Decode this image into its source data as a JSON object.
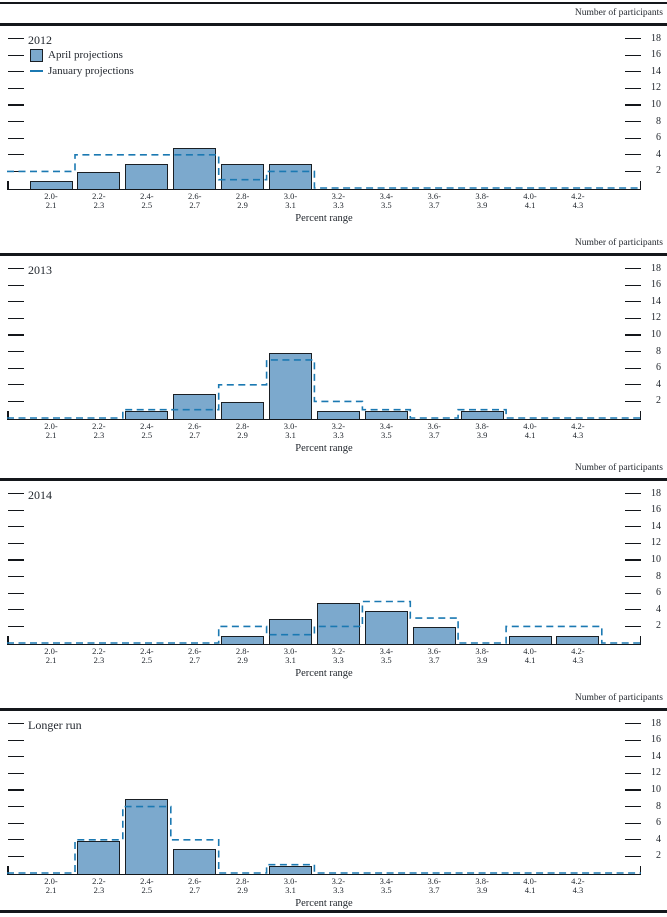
{
  "figure": {
    "y_axis_title": "Number of participants",
    "x_axis_title": "Percent range",
    "legend": {
      "april_label": "April projections",
      "january_label": "January projections"
    },
    "colors": {
      "bar_fill": "#7CA9CD",
      "bar_border": "#1A1F24",
      "january_dashed_line": "#1B79B2",
      "text": "#1F242B",
      "rule": "#14171B"
    }
  },
  "chart_data": [
    {
      "type": "bar",
      "title": "2012",
      "categories": [
        "2.0-2.1",
        "2.2-2.3",
        "2.4-2.5",
        "2.6-2.7",
        "2.8-2.9",
        "3.0-3.1",
        "3.2-3.3",
        "3.4-3.5",
        "3.6-3.7",
        "3.8-3.9",
        "4.0-4.1",
        "4.2-4.3"
      ],
      "series": [
        {
          "name": "April projections",
          "style": "solid-bar",
          "values": [
            1,
            2,
            3,
            5,
            3,
            3,
            0,
            0,
            0,
            0,
            0,
            0
          ]
        },
        {
          "name": "January projections",
          "style": "dashed-step-outline",
          "values": [
            2,
            4,
            4,
            4,
            1,
            2,
            0,
            0,
            0,
            0,
            0,
            0
          ]
        }
      ],
      "xlabel": "Percent range",
      "ylabel": "Number of participants",
      "yticks": [
        2,
        4,
        6,
        8,
        10,
        12,
        14,
        16,
        18
      ],
      "ylim": [
        0,
        19.5
      ],
      "grid": false,
      "legend_position": "top-left",
      "show_legend": true
    },
    {
      "type": "bar",
      "title": "2013",
      "categories": [
        "2.0-2.1",
        "2.2-2.3",
        "2.4-2.5",
        "2.6-2.7",
        "2.8-2.9",
        "3.0-3.1",
        "3.2-3.3",
        "3.4-3.5",
        "3.6-3.7",
        "3.8-3.9",
        "4.0-4.1",
        "4.2-4.3"
      ],
      "series": [
        {
          "name": "April projections",
          "style": "solid-bar",
          "values": [
            0,
            0,
            1,
            3,
            2,
            8,
            1,
            1,
            0,
            1,
            0,
            0
          ]
        },
        {
          "name": "January projections",
          "style": "dashed-step-outline",
          "values": [
            0,
            0,
            1,
            1,
            4,
            7,
            2,
            1,
            0,
            1,
            0,
            0
          ]
        }
      ],
      "xlabel": "Percent range",
      "ylabel": "Number of participants",
      "yticks": [
        2,
        4,
        6,
        8,
        10,
        12,
        14,
        16,
        18
      ],
      "ylim": [
        0,
        19.5
      ],
      "grid": false,
      "show_legend": false
    },
    {
      "type": "bar",
      "title": "2014",
      "categories": [
        "2.0-2.1",
        "2.2-2.3",
        "2.4-2.5",
        "2.6-2.7",
        "2.8-2.9",
        "3.0-3.1",
        "3.2-3.3",
        "3.4-3.5",
        "3.6-3.7",
        "3.8-3.9",
        "4.0-4.1",
        "4.2-4.3"
      ],
      "series": [
        {
          "name": "April projections",
          "style": "solid-bar",
          "values": [
            0,
            0,
            0,
            0,
            1,
            3,
            5,
            4,
            2,
            0,
            1,
            1
          ]
        },
        {
          "name": "January projections",
          "style": "dashed-step-outline",
          "values": [
            0,
            0,
            0,
            0,
            2,
            1,
            2,
            5,
            3,
            0,
            2,
            2
          ]
        }
      ],
      "xlabel": "Percent range",
      "ylabel": "Number of participants",
      "yticks": [
        2,
        4,
        6,
        8,
        10,
        12,
        14,
        16,
        18
      ],
      "ylim": [
        0,
        19.5
      ],
      "grid": false,
      "show_legend": false
    },
    {
      "type": "bar",
      "title": "Longer run",
      "categories": [
        "2.0-2.1",
        "2.2-2.3",
        "2.4-2.5",
        "2.6-2.7",
        "2.8-2.9",
        "3.0-3.1",
        "3.2-3.3",
        "3.4-3.5",
        "3.6-3.7",
        "3.8-3.9",
        "4.0-4.1",
        "4.2-4.3"
      ],
      "series": [
        {
          "name": "April projections",
          "style": "solid-bar",
          "values": [
            0,
            4,
            9,
            3,
            0,
            1,
            0,
            0,
            0,
            0,
            0,
            0
          ]
        },
        {
          "name": "January projections",
          "style": "dashed-step-outline",
          "values": [
            0,
            4,
            8,
            4,
            0,
            1,
            0,
            0,
            0,
            0,
            0,
            0
          ]
        }
      ],
      "xlabel": "Percent range",
      "ylabel": "Number of participants",
      "yticks": [
        2,
        4,
        6,
        8,
        10,
        12,
        14,
        16,
        18
      ],
      "ylim": [
        0,
        19.5
      ],
      "grid": false,
      "show_legend": false
    }
  ]
}
